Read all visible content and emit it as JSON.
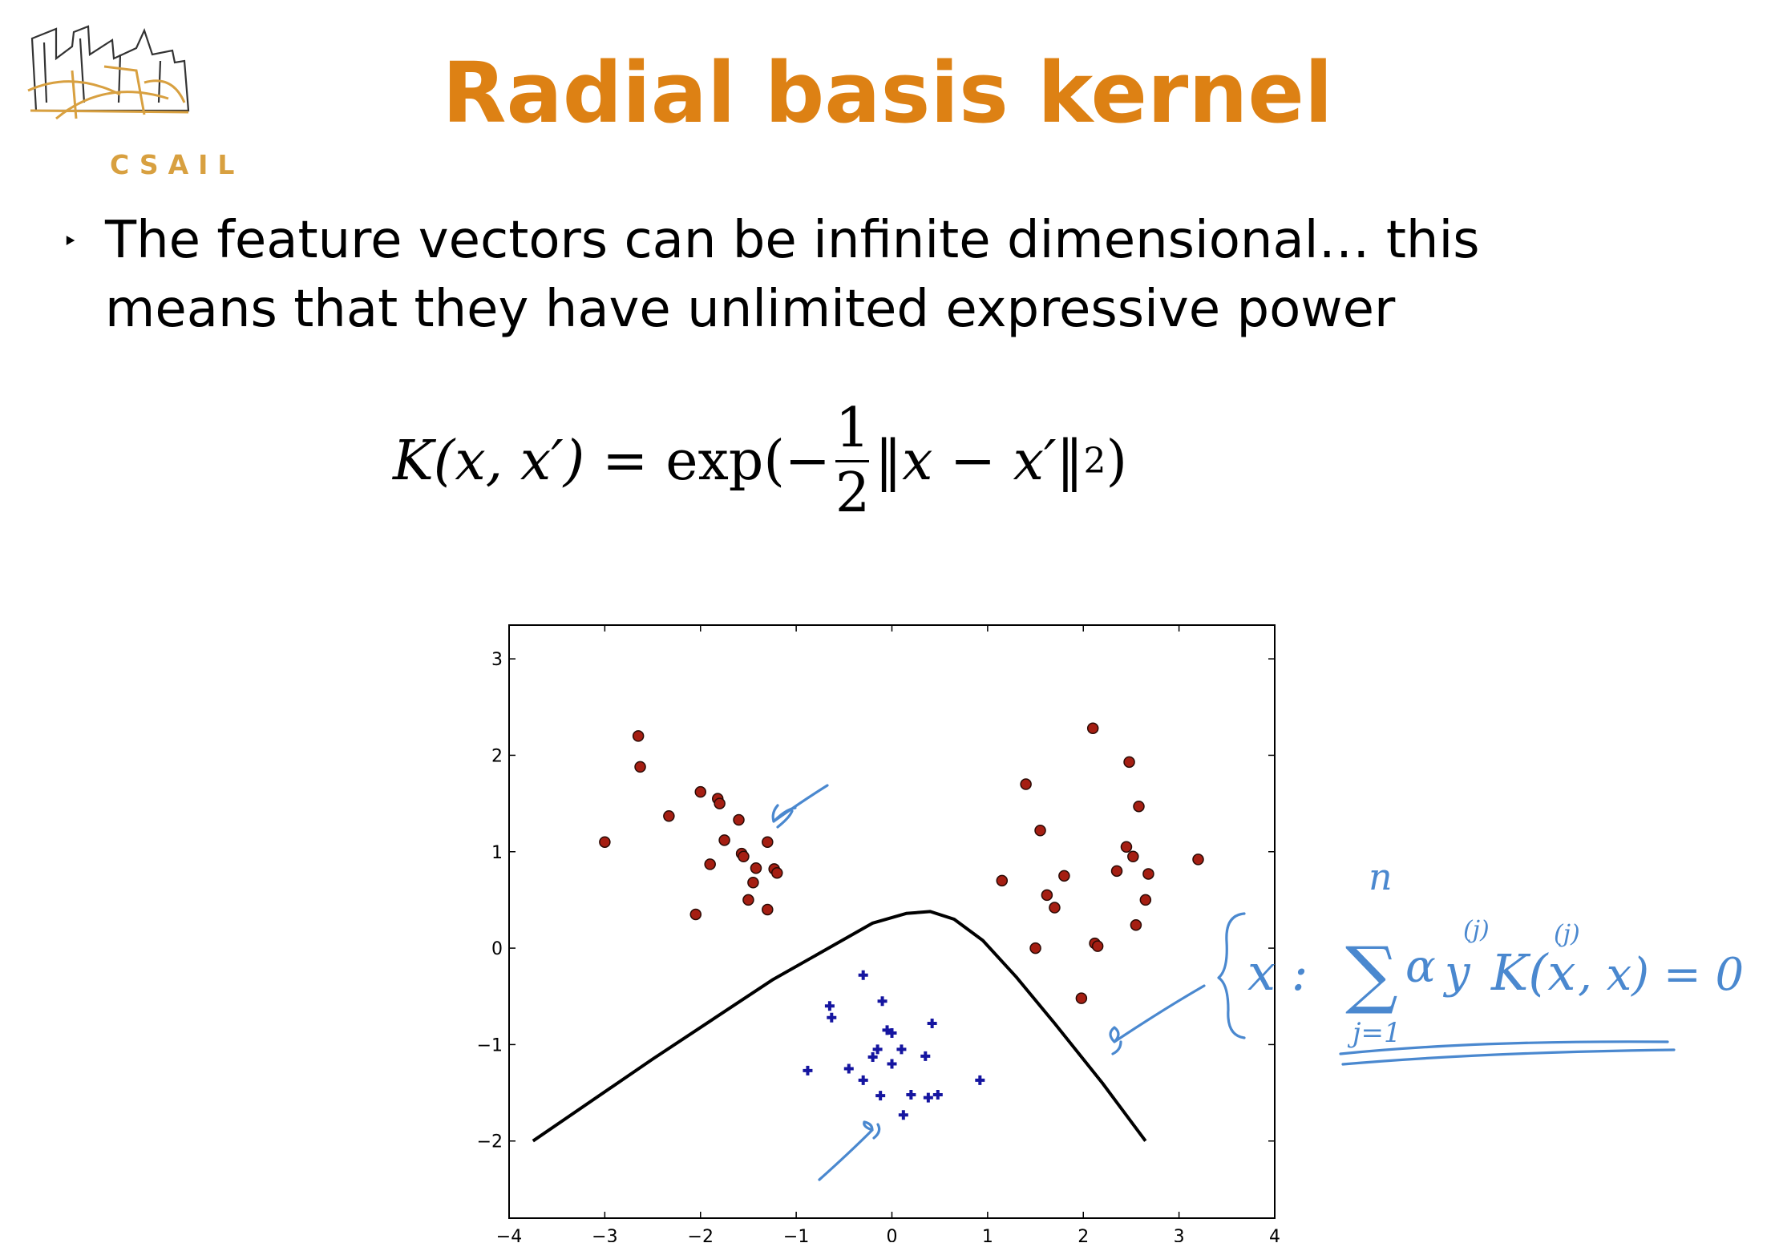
{
  "logo": {
    "text": "CSAIL",
    "color": "#d8a040"
  },
  "slide": {
    "title": "Radial basis kernel",
    "title_color": "#dd8114",
    "bullet_marker": "‣",
    "bullet_line1": "The feature vectors can be infinite dimensional… this",
    "bullet_line2": "means that they have unlimited expressive power"
  },
  "formula": {
    "lhs": "K(x, x′)",
    "equals": "=",
    "exp_open": "exp(−",
    "frac_num": "1",
    "frac_den": "2",
    "norm": "‖x − x′‖",
    "power": "2",
    "close": ")"
  },
  "chart_data": {
    "type": "scatter",
    "xlim": [
      -4,
      4
    ],
    "ylim": [
      -2.8,
      3.35
    ],
    "xticks": [
      "−4",
      "−3",
      "−2",
      "−1",
      "0",
      "1",
      "2",
      "3",
      "4"
    ],
    "xtick_values": [
      -4,
      -3,
      -2,
      -1,
      0,
      1,
      2,
      3,
      4
    ],
    "yticks": [
      "−2",
      "−1",
      "0",
      "1",
      "2",
      "3"
    ],
    "ytick_values": [
      -2,
      -1,
      0,
      1,
      2,
      3
    ],
    "grid": false,
    "series": [
      {
        "marker": "circle",
        "color": "#a51e12",
        "points": [
          [
            -3.0,
            1.1
          ],
          [
            -2.65,
            2.2
          ],
          [
            -2.63,
            1.88
          ],
          [
            -2.33,
            1.37
          ],
          [
            -2.05,
            0.35
          ],
          [
            -2.0,
            1.62
          ],
          [
            -1.9,
            0.87
          ],
          [
            -1.82,
            1.55
          ],
          [
            -1.8,
            1.5
          ],
          [
            -1.75,
            1.12
          ],
          [
            -1.6,
            1.33
          ],
          [
            -1.57,
            0.98
          ],
          [
            -1.55,
            0.95
          ],
          [
            -1.5,
            0.5
          ],
          [
            -1.45,
            0.68
          ],
          [
            -1.42,
            0.83
          ],
          [
            -1.3,
            0.4
          ],
          [
            -1.3,
            1.1
          ],
          [
            -1.23,
            0.82
          ],
          [
            -1.2,
            0.78
          ],
          [
            1.15,
            0.7
          ],
          [
            1.4,
            1.7
          ],
          [
            1.5,
            0.0
          ],
          [
            1.55,
            1.22
          ],
          [
            1.62,
            0.55
          ],
          [
            1.7,
            0.42
          ],
          [
            1.8,
            0.75
          ],
          [
            1.98,
            -0.52
          ],
          [
            2.1,
            2.28
          ],
          [
            2.12,
            0.05
          ],
          [
            2.15,
            0.02
          ],
          [
            2.35,
            0.8
          ],
          [
            2.45,
            1.05
          ],
          [
            2.48,
            1.93
          ],
          [
            2.52,
            0.95
          ],
          [
            2.55,
            0.24
          ],
          [
            2.58,
            1.47
          ],
          [
            2.65,
            0.5
          ],
          [
            2.68,
            0.77
          ],
          [
            3.2,
            0.92
          ]
        ]
      },
      {
        "marker": "plus",
        "color": "#1515a0",
        "points": [
          [
            -0.88,
            -1.27
          ],
          [
            -0.65,
            -0.6
          ],
          [
            -0.63,
            -0.72
          ],
          [
            -0.45,
            -1.25
          ],
          [
            -0.3,
            -0.28
          ],
          [
            -0.3,
            -1.37
          ],
          [
            -0.2,
            -1.13
          ],
          [
            -0.15,
            -1.05
          ],
          [
            -0.12,
            -1.53
          ],
          [
            -0.1,
            -0.55
          ],
          [
            -0.05,
            -0.85
          ],
          [
            0.0,
            -0.88
          ],
          [
            0.0,
            -1.2
          ],
          [
            0.1,
            -1.05
          ],
          [
            0.12,
            -1.73
          ],
          [
            0.2,
            -1.52
          ],
          [
            0.35,
            -1.12
          ],
          [
            0.38,
            -1.55
          ],
          [
            0.42,
            -0.78
          ],
          [
            0.48,
            -1.52
          ],
          [
            0.92,
            -1.37
          ]
        ]
      },
      {
        "marker": "line",
        "color": "#000000",
        "points": [
          [
            -3.75,
            -2.0
          ],
          [
            -2.5,
            -1.15
          ],
          [
            -1.25,
            -0.33
          ],
          [
            -0.2,
            0.26
          ],
          [
            0.15,
            0.36
          ],
          [
            0.4,
            0.38
          ],
          [
            0.65,
            0.3
          ],
          [
            0.95,
            0.08
          ],
          [
            1.3,
            -0.3
          ],
          [
            1.7,
            -0.78
          ],
          [
            2.2,
            -1.4
          ],
          [
            2.65,
            -2.0
          ]
        ]
      }
    ]
  },
  "annotation": {
    "color": "#4a88cf",
    "sum_top": "n",
    "sum_bottom": "j=1",
    "superscript": "(j)",
    "expression_start": "x :",
    "sum_sign": "∑",
    "expression_alpha": "α",
    "expression_y": "y",
    "expression_k": "K(x",
    "expression_rest": ", x) = 0"
  }
}
